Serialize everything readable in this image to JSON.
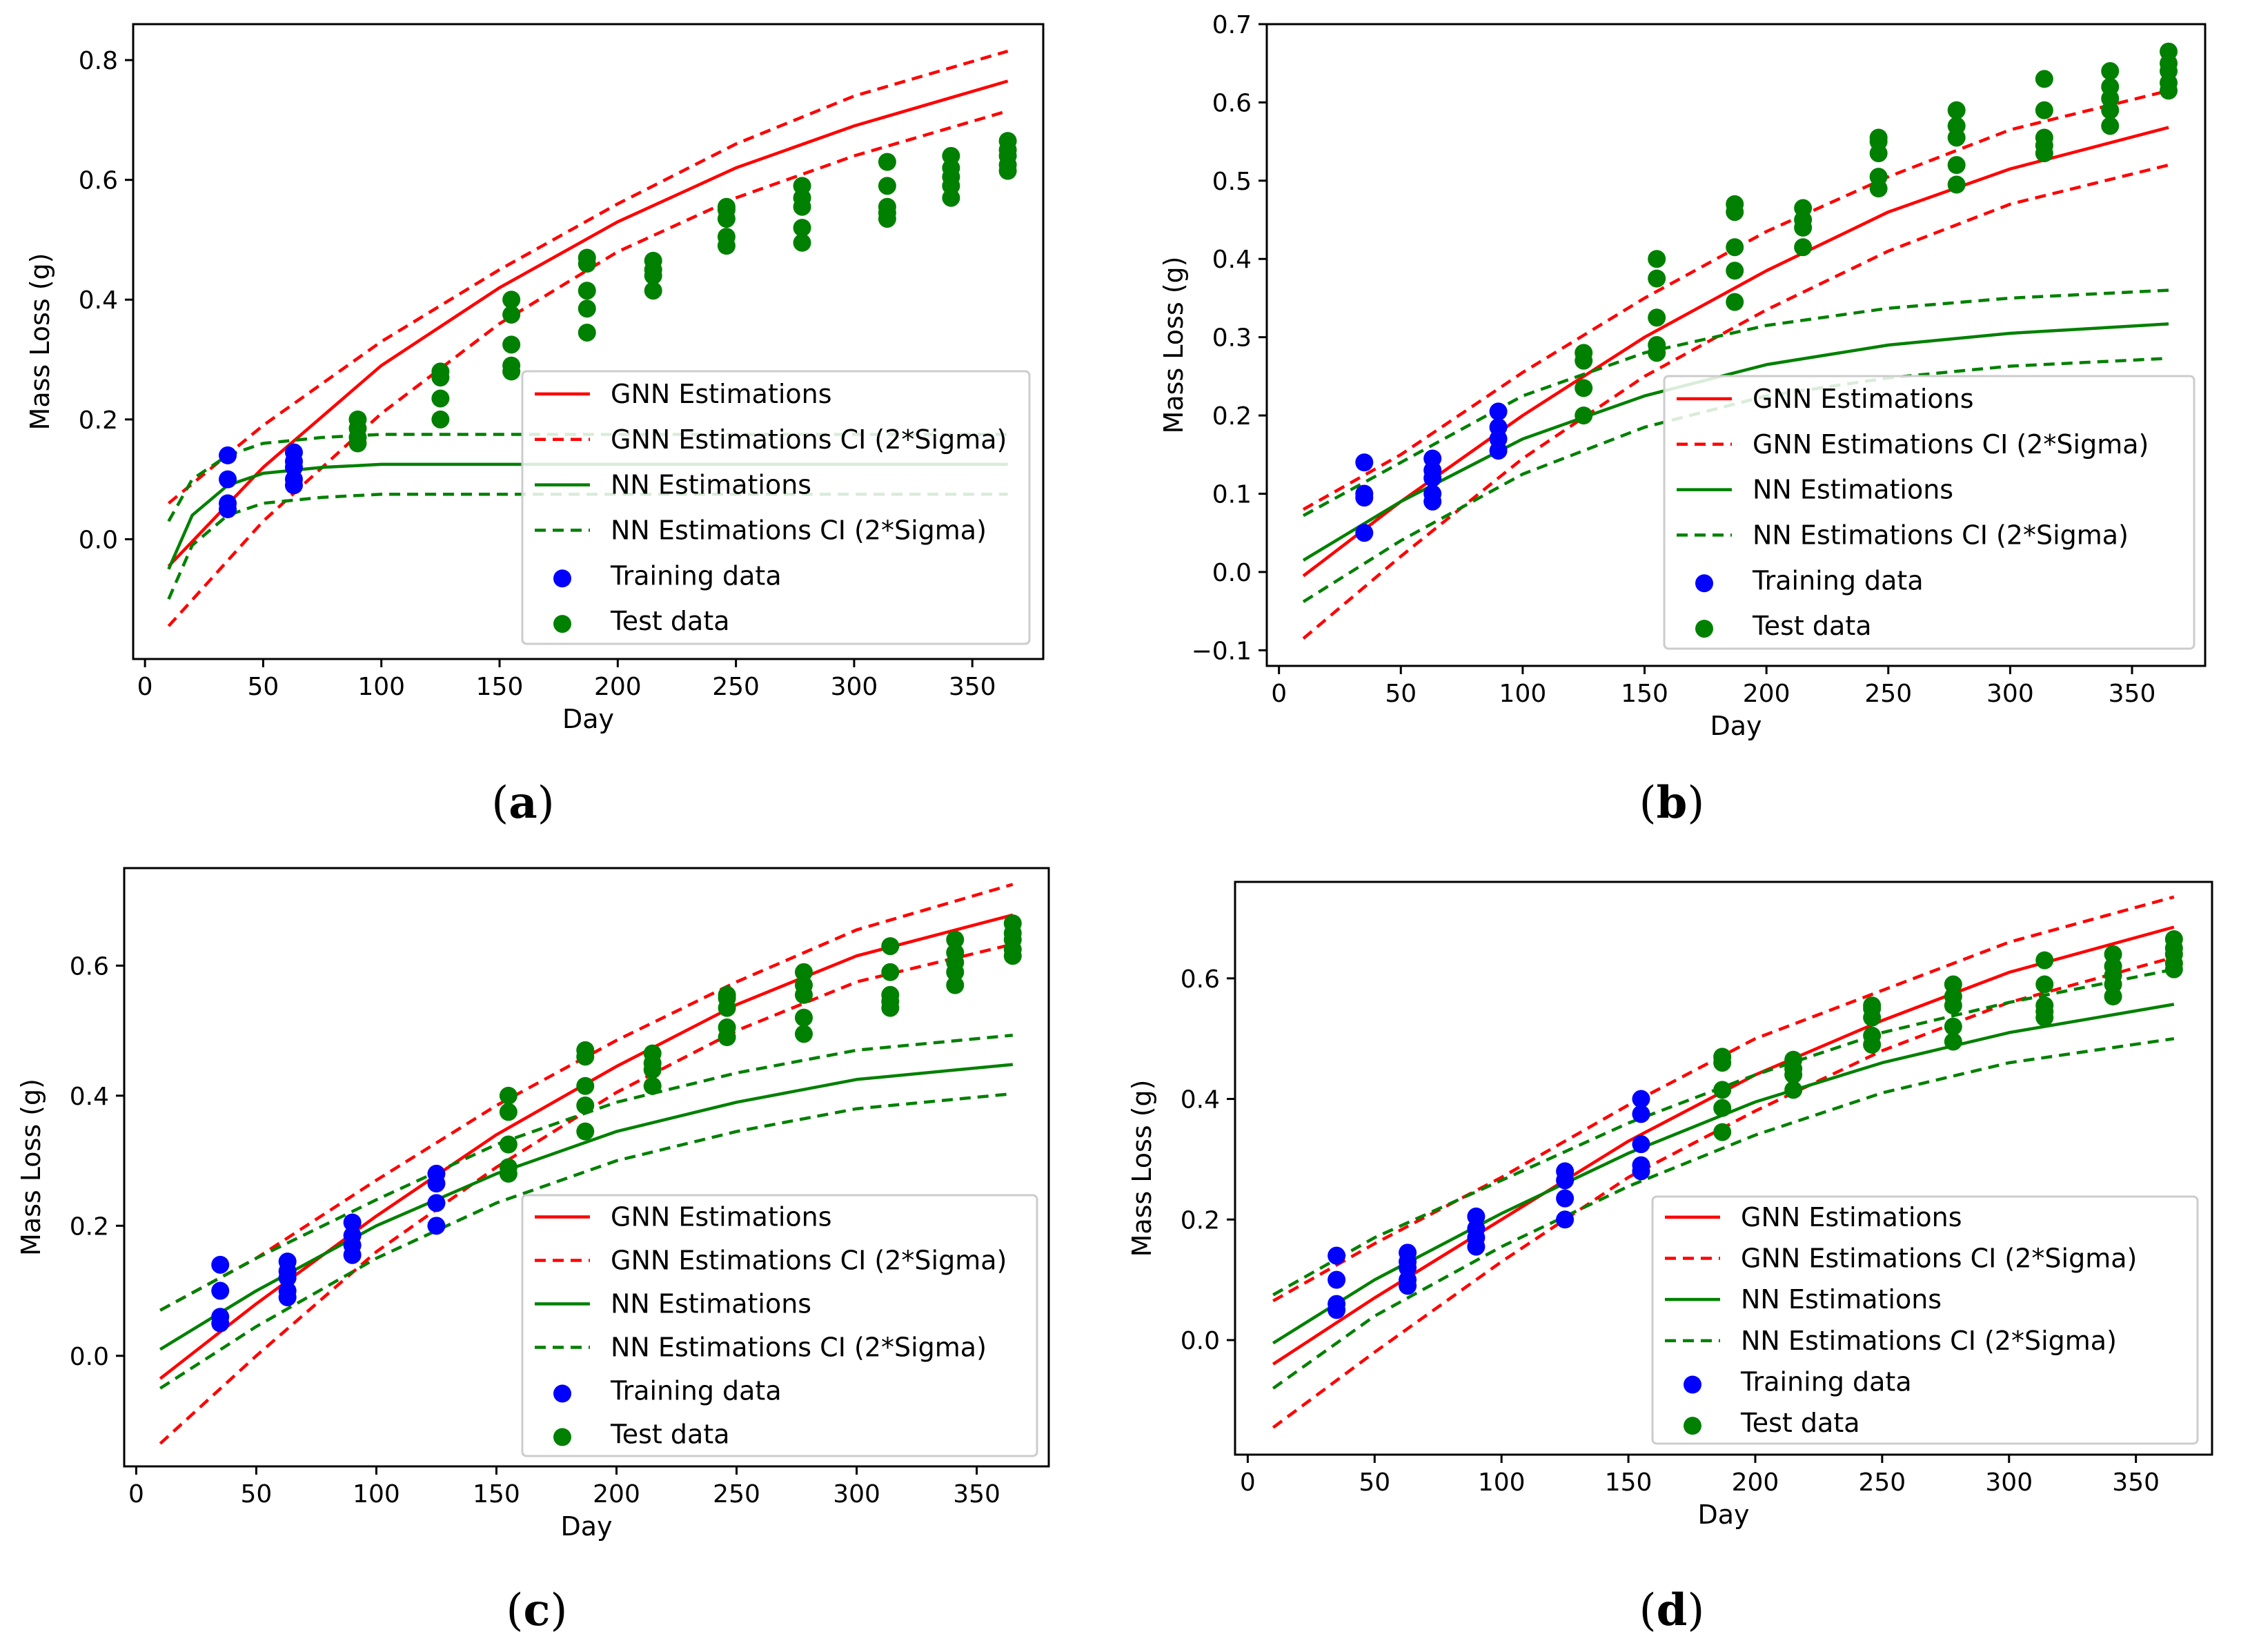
{
  "colors": {
    "gnn": "#ff0000",
    "nn": "#008000",
    "training": "#0000ff",
    "test": "#008000"
  },
  "chart_data": [
    {
      "type": "line",
      "caption": "a",
      "xlabel": "Day",
      "ylabel": "Mass Loss (g)",
      "xlim": [
        -5,
        380
      ],
      "ylim": [
        -0.2,
        0.86
      ],
      "xticks": [
        0,
        50,
        100,
        150,
        200,
        250,
        300,
        350
      ],
      "yticks": [
        0.0,
        0.2,
        0.4,
        0.6,
        0.8
      ],
      "ytick_labels": [
        "0.0",
        "0.2",
        "0.4",
        "0.6",
        "0.8"
      ],
      "legend": [
        "GNN Estimations",
        "GNN Estimations CI (2*Sigma)",
        "NN Estimations",
        "NN Estimations CI (2*Sigma)",
        "Training data",
        "Test data"
      ],
      "legend_position": "lower-right",
      "series": [
        {
          "name": "GNN Estimations",
          "style": "solid",
          "color": "gnn",
          "x": [
            10,
            50,
            100,
            150,
            200,
            250,
            300,
            365
          ],
          "y": [
            -0.045,
            0.12,
            0.29,
            0.42,
            0.53,
            0.62,
            0.69,
            0.765
          ]
        },
        {
          "name": "GNN Estimations CI upper",
          "style": "dashed",
          "color": "gnn",
          "x": [
            10,
            50,
            100,
            150,
            200,
            250,
            300,
            365
          ],
          "y": [
            0.06,
            0.19,
            0.33,
            0.45,
            0.56,
            0.66,
            0.74,
            0.815
          ]
        },
        {
          "name": "GNN Estimations CI lower",
          "style": "dashed",
          "color": "gnn",
          "x": [
            10,
            50,
            100,
            150,
            200,
            250,
            300,
            365
          ],
          "y": [
            -0.145,
            0.03,
            0.21,
            0.36,
            0.48,
            0.57,
            0.64,
            0.715
          ]
        },
        {
          "name": "NN Estimations",
          "style": "solid",
          "color": "nn",
          "x": [
            10,
            20,
            35,
            50,
            75,
            100,
            150,
            200,
            365
          ],
          "y": [
            -0.05,
            0.04,
            0.09,
            0.11,
            0.12,
            0.125,
            0.125,
            0.125,
            0.125
          ]
        },
        {
          "name": "NN Estimations CI upper",
          "style": "dashed",
          "color": "nn",
          "x": [
            10,
            20,
            35,
            50,
            75,
            100,
            150,
            200,
            365
          ],
          "y": [
            0.03,
            0.1,
            0.14,
            0.16,
            0.17,
            0.175,
            0.175,
            0.175,
            0.175
          ]
        },
        {
          "name": "NN Estimations CI lower",
          "style": "dashed",
          "color": "nn",
          "x": [
            10,
            20,
            35,
            50,
            75,
            100,
            150,
            200,
            365
          ],
          "y": [
            -0.1,
            -0.01,
            0.04,
            0.06,
            0.07,
            0.075,
            0.075,
            0.075,
            0.075
          ]
        }
      ],
      "scatter": [
        {
          "name": "Training data",
          "color": "training",
          "x": [
            35,
            35,
            35,
            35,
            63,
            63,
            63,
            63,
            63
          ],
          "y": [
            0.14,
            0.1,
            0.06,
            0.05,
            0.145,
            0.13,
            0.12,
            0.1,
            0.09
          ]
        },
        {
          "name": "Test data",
          "color": "test",
          "x": [
            90,
            90,
            90,
            90,
            125,
            125,
            125,
            125,
            155,
            155,
            155,
            155,
            155,
            187,
            187,
            187,
            187,
            187,
            215,
            215,
            215,
            215,
            246,
            246,
            246,
            246,
            246,
            278,
            278,
            278,
            278,
            278,
            314,
            314,
            314,
            314,
            314,
            341,
            341,
            341,
            341,
            341,
            365,
            365,
            365,
            365,
            365
          ]
        },
        {
          "name": "Test data",
          "color": "test",
          "x": [],
          "y": []
        }
      ]
    }
  ]
}
